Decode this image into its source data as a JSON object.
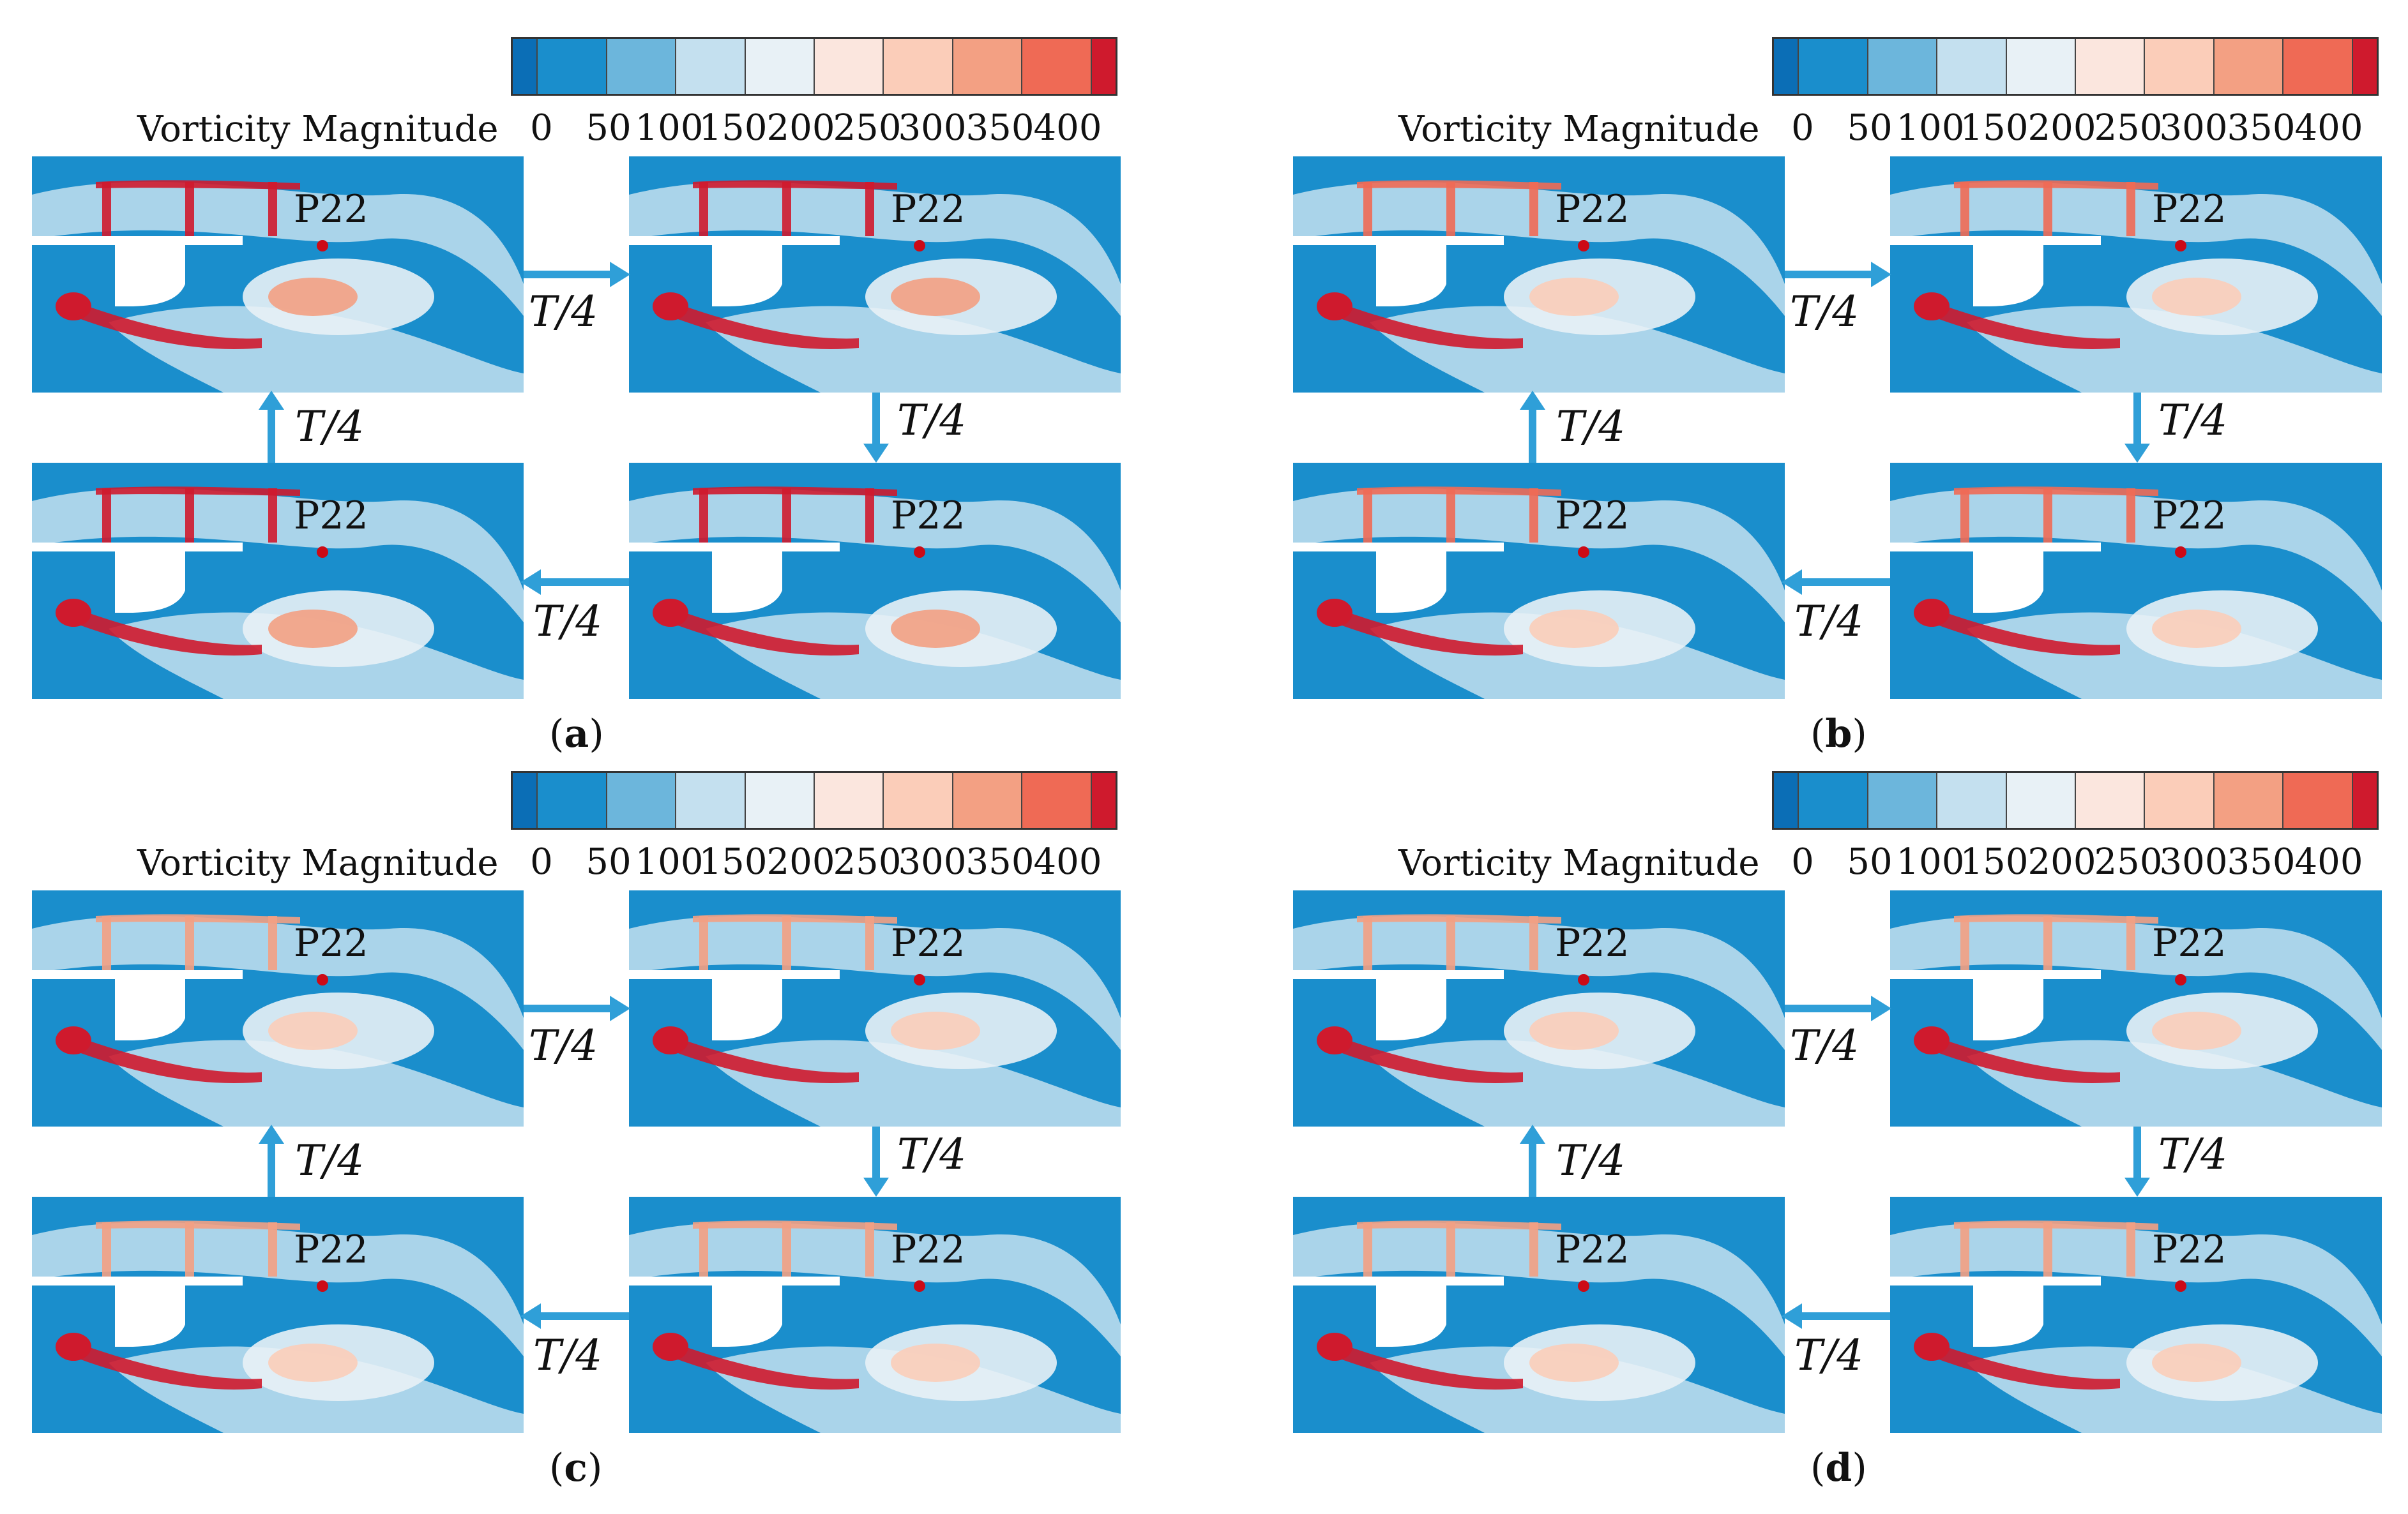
{
  "colorbar": {
    "title": "Vorticity Magnitude",
    "ticks": [
      "0",
      "50",
      "100",
      "150",
      "200",
      "250",
      "300",
      "350",
      "400"
    ],
    "colors": [
      "#0b6eb6",
      "#1a8ecc",
      "#6cb6dc",
      "#c4e0ef",
      "#e8f1f6",
      "#fbe6de",
      "#fbcdb9",
      "#f3a083",
      "#ef6a55",
      "#cf1a2d"
    ]
  },
  "point_label": "P22",
  "step_label": "T/4",
  "panels": [
    {
      "letter": "a"
    },
    {
      "letter": "b"
    },
    {
      "letter": "c"
    },
    {
      "letter": "d"
    }
  ]
}
